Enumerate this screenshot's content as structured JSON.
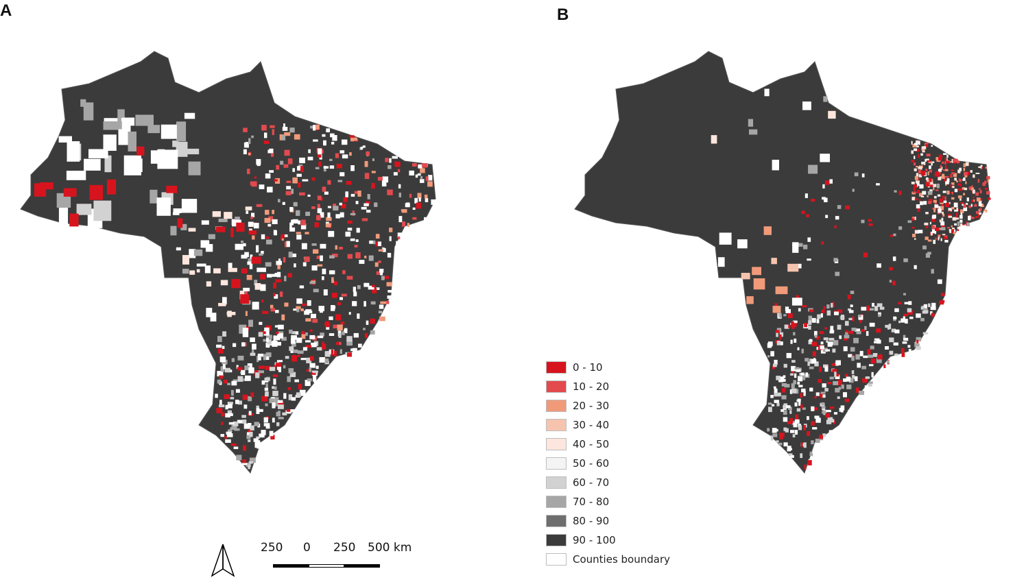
{
  "panels": [
    {
      "label": "A"
    },
    {
      "label": "B"
    }
  ],
  "legend": {
    "items": [
      {
        "label": "0 - 10",
        "color": "#d7141e"
      },
      {
        "label": "10 - 20",
        "color": "#e24a4e"
      },
      {
        "label": "20 - 30",
        "color": "#f09a7a"
      },
      {
        "label": "30 - 40",
        "color": "#f6c4ae"
      },
      {
        "label": "40 - 50",
        "color": "#fce6dd"
      },
      {
        "label": "50 - 60",
        "color": "#f4f4f4"
      },
      {
        "label": "60 - 70",
        "color": "#d2d2d2"
      },
      {
        "label": "70 - 80",
        "color": "#a6a6a6"
      },
      {
        "label": "80 - 90",
        "color": "#6e6e6e"
      },
      {
        "label": "90 - 100",
        "color": "#3b3b3b"
      },
      {
        "label": "Counties boundary",
        "color": "#ffffff"
      }
    ]
  },
  "scale_bar": {
    "labels": [
      "250",
      "0",
      "250",
      "500 km"
    ]
  },
  "north_arrow": {
    "icon": "north-arrow-icon"
  },
  "map_colors": {
    "dominant": "#3b3b3b",
    "low": "#d7141e",
    "empty": "#ffffff"
  }
}
